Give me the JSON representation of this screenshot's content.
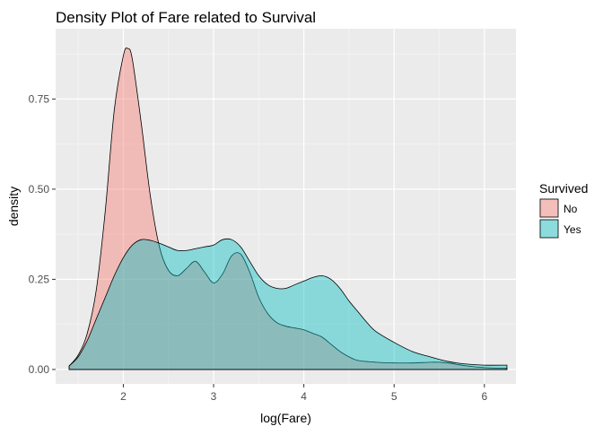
{
  "chart_data": {
    "type": "area",
    "title": "Density Plot of Fare related to Survival",
    "xlabel": "log(Fare)",
    "ylabel": "density",
    "xlim": [
      1.25,
      6.35
    ],
    "ylim": [
      -0.04,
      0.945
    ],
    "x_ticks": [
      2,
      3,
      4,
      5,
      6
    ],
    "y_ticks": [
      0.0,
      0.25,
      0.5,
      0.75
    ],
    "x_tick_labels": [
      "2",
      "3",
      "4",
      "5",
      "6"
    ],
    "y_tick_labels": [
      "0.00",
      "0.25",
      "0.50",
      "0.75"
    ],
    "grid": true,
    "legend": {
      "title": "Survived",
      "position": "right"
    },
    "series": [
      {
        "name": "No",
        "color": "#F8766D",
        "x": [
          1.4,
          1.5,
          1.6,
          1.7,
          1.8,
          1.9,
          2.0,
          2.05,
          2.1,
          2.2,
          2.3,
          2.4,
          2.5,
          2.6,
          2.7,
          2.8,
          2.9,
          3.0,
          3.1,
          3.2,
          3.3,
          3.4,
          3.5,
          3.6,
          3.7,
          3.8,
          3.9,
          4.0,
          4.1,
          4.2,
          4.3,
          4.4,
          4.5,
          4.6,
          4.8,
          5.0,
          5.2,
          5.4,
          5.5,
          5.6,
          5.8,
          6.0,
          6.25
        ],
        "values": [
          0.01,
          0.04,
          0.1,
          0.22,
          0.44,
          0.72,
          0.87,
          0.89,
          0.86,
          0.68,
          0.48,
          0.34,
          0.275,
          0.26,
          0.28,
          0.3,
          0.27,
          0.24,
          0.265,
          0.315,
          0.32,
          0.27,
          0.2,
          0.155,
          0.13,
          0.12,
          0.115,
          0.11,
          0.1,
          0.09,
          0.07,
          0.05,
          0.035,
          0.025,
          0.02,
          0.018,
          0.018,
          0.02,
          0.02,
          0.018,
          0.01,
          0.005,
          0.003
        ]
      },
      {
        "name": "Yes",
        "color": "#00BFC4",
        "x": [
          1.4,
          1.5,
          1.6,
          1.7,
          1.8,
          1.9,
          2.0,
          2.1,
          2.2,
          2.3,
          2.4,
          2.5,
          2.6,
          2.7,
          2.8,
          2.9,
          3.0,
          3.1,
          3.2,
          3.3,
          3.4,
          3.5,
          3.6,
          3.7,
          3.8,
          3.9,
          4.0,
          4.1,
          4.2,
          4.3,
          4.4,
          4.5,
          4.6,
          4.7,
          4.8,
          5.0,
          5.2,
          5.4,
          5.6,
          5.8,
          6.0,
          6.25
        ],
        "values": [
          0.01,
          0.035,
          0.08,
          0.14,
          0.2,
          0.26,
          0.31,
          0.345,
          0.36,
          0.358,
          0.35,
          0.34,
          0.33,
          0.33,
          0.335,
          0.34,
          0.345,
          0.36,
          0.36,
          0.34,
          0.3,
          0.26,
          0.235,
          0.225,
          0.225,
          0.235,
          0.245,
          0.255,
          0.26,
          0.25,
          0.225,
          0.19,
          0.16,
          0.13,
          0.105,
          0.075,
          0.05,
          0.035,
          0.022,
          0.015,
          0.012,
          0.012
        ]
      }
    ]
  }
}
